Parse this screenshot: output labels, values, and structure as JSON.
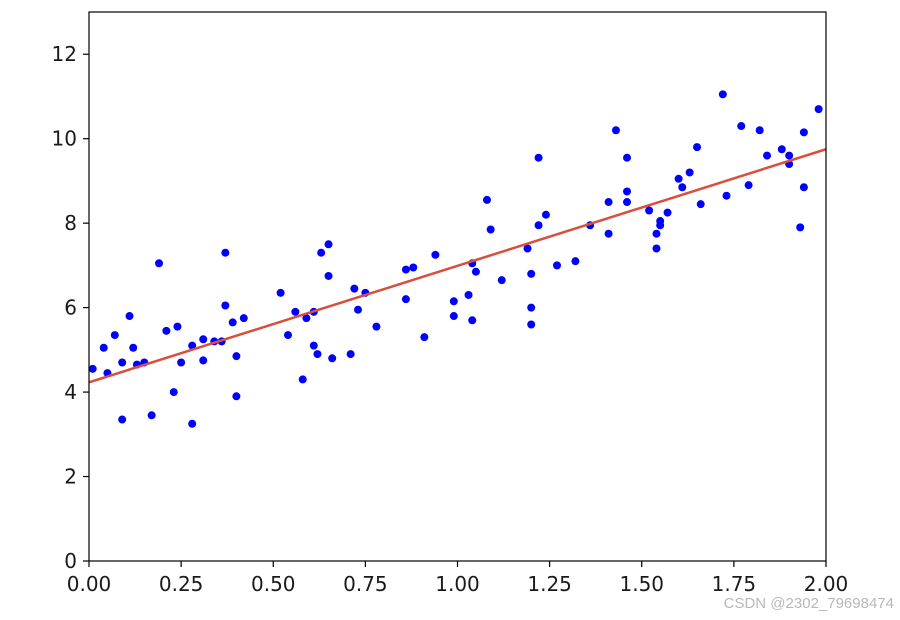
{
  "chart_data": {
    "type": "scatter",
    "title": "",
    "xlabel": "",
    "ylabel": "",
    "xlim": [
      0,
      2
    ],
    "ylim": [
      0,
      13
    ],
    "x_ticks": [
      0,
      0.25,
      0.5,
      0.75,
      1.0,
      1.25,
      1.5,
      1.75,
      2.0
    ],
    "x_tick_labels": [
      "0.00",
      "0.25",
      "0.50",
      "0.75",
      "1.00",
      "1.25",
      "1.50",
      "1.75",
      "2.00"
    ],
    "y_ticks": [
      0,
      2,
      4,
      6,
      8,
      10,
      12
    ],
    "y_tick_labels": [
      "0",
      "2",
      "4",
      "6",
      "8",
      "10",
      "12"
    ],
    "grid": false,
    "legend": "none",
    "series": [
      {
        "type": "scatter",
        "color": "#0000ff",
        "points": [
          [
            0.01,
            4.55
          ],
          [
            0.04,
            5.05
          ],
          [
            0.05,
            4.45
          ],
          [
            0.07,
            5.35
          ],
          [
            0.09,
            3.35
          ],
          [
            0.09,
            4.7
          ],
          [
            0.11,
            5.8
          ],
          [
            0.12,
            5.05
          ],
          [
            0.13,
            4.65
          ],
          [
            0.15,
            4.7
          ],
          [
            0.17,
            3.45
          ],
          [
            0.19,
            7.05
          ],
          [
            0.21,
            5.45
          ],
          [
            0.23,
            4.0
          ],
          [
            0.24,
            5.55
          ],
          [
            0.25,
            4.7
          ],
          [
            0.28,
            3.25
          ],
          [
            0.28,
            5.1
          ],
          [
            0.31,
            4.75
          ],
          [
            0.31,
            5.25
          ],
          [
            0.34,
            5.2
          ],
          [
            0.36,
            5.2
          ],
          [
            0.37,
            6.05
          ],
          [
            0.37,
            7.3
          ],
          [
            0.39,
            5.65
          ],
          [
            0.4,
            4.85
          ],
          [
            0.4,
            3.9
          ],
          [
            0.42,
            5.75
          ],
          [
            0.52,
            6.35
          ],
          [
            0.54,
            5.35
          ],
          [
            0.56,
            5.9
          ],
          [
            0.58,
            4.3
          ],
          [
            0.59,
            5.75
          ],
          [
            0.61,
            5.1
          ],
          [
            0.61,
            5.9
          ],
          [
            0.62,
            4.9
          ],
          [
            0.63,
            7.3
          ],
          [
            0.65,
            7.5
          ],
          [
            0.65,
            6.75
          ],
          [
            0.66,
            4.8
          ],
          [
            0.71,
            4.9
          ],
          [
            0.72,
            6.45
          ],
          [
            0.73,
            5.95
          ],
          [
            0.75,
            6.35
          ],
          [
            0.78,
            5.55
          ],
          [
            0.86,
            6.9
          ],
          [
            0.86,
            6.2
          ],
          [
            0.88,
            6.95
          ],
          [
            0.91,
            5.3
          ],
          [
            0.94,
            7.25
          ],
          [
            0.99,
            6.15
          ],
          [
            0.99,
            5.8
          ],
          [
            1.03,
            6.3
          ],
          [
            1.04,
            7.05
          ],
          [
            1.04,
            5.7
          ],
          [
            1.05,
            6.85
          ],
          [
            1.08,
            8.55
          ],
          [
            1.09,
            7.85
          ],
          [
            1.12,
            6.65
          ],
          [
            1.19,
            7.4
          ],
          [
            1.2,
            6.8
          ],
          [
            1.2,
            6.0
          ],
          [
            1.2,
            5.6
          ],
          [
            1.22,
            9.55
          ],
          [
            1.22,
            7.95
          ],
          [
            1.24,
            8.2
          ],
          [
            1.27,
            7.0
          ],
          [
            1.32,
            7.1
          ],
          [
            1.36,
            7.95
          ],
          [
            1.41,
            8.5
          ],
          [
            1.41,
            7.75
          ],
          [
            1.43,
            10.2
          ],
          [
            1.46,
            9.55
          ],
          [
            1.46,
            8.75
          ],
          [
            1.46,
            8.5
          ],
          [
            1.52,
            8.3
          ],
          [
            1.54,
            7.75
          ],
          [
            1.54,
            7.4
          ],
          [
            1.55,
            8.05
          ],
          [
            1.55,
            7.95
          ],
          [
            1.57,
            8.25
          ],
          [
            1.6,
            9.05
          ],
          [
            1.61,
            8.85
          ],
          [
            1.63,
            9.2
          ],
          [
            1.65,
            9.8
          ],
          [
            1.66,
            8.45
          ],
          [
            1.72,
            11.05
          ],
          [
            1.73,
            8.65
          ],
          [
            1.77,
            10.3
          ],
          [
            1.79,
            8.9
          ],
          [
            1.82,
            10.2
          ],
          [
            1.84,
            9.6
          ],
          [
            1.88,
            9.75
          ],
          [
            1.9,
            9.6
          ],
          [
            1.9,
            9.4
          ],
          [
            1.93,
            7.9
          ],
          [
            1.94,
            10.15
          ],
          [
            1.94,
            8.85
          ],
          [
            1.98,
            10.7
          ]
        ]
      },
      {
        "type": "line",
        "color": "#d94f3d",
        "x": [
          0,
          2
        ],
        "y": [
          4.23,
          9.75
        ]
      }
    ]
  },
  "watermark": "CSDN @2302_79698474"
}
